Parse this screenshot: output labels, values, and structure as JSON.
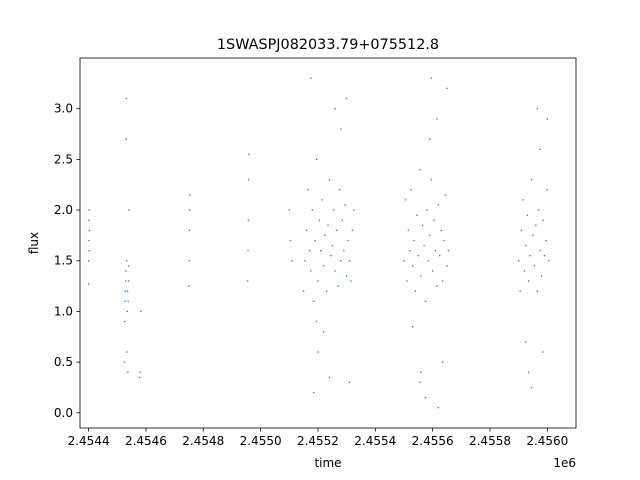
{
  "chart_data": {
    "type": "scatter",
    "title": "1SWASPJ082033.79+075512.8",
    "xlabel": "time",
    "ylabel": "flux",
    "x_offset_label": "1e6",
    "xlim": [
      2454370,
      2456100
    ],
    "ylim": [
      -0.15,
      3.5
    ],
    "x_ticks": [
      2454400,
      2454600,
      2454800,
      2455000,
      2455200,
      2455400,
      2455600,
      2455800,
      2456000
    ],
    "x_tick_labels": [
      "2.4544",
      "2.4546",
      "2.4548",
      "2.4550",
      "2.4552",
      "2.4554",
      "2.4556",
      "2.4558",
      "2.4560"
    ],
    "y_ticks": [
      0.0,
      0.5,
      1.0,
      1.5,
      2.0,
      2.5,
      3.0
    ],
    "y_tick_labels": [
      "0.0",
      "0.5",
      "1.0",
      "1.5",
      "2.0",
      "2.5",
      "3.0"
    ],
    "grid": false,
    "marker_color": "#1f77b4",
    "series": [
      {
        "x": [
          2454400,
          2454400,
          2454401,
          2454401,
          2454402,
          2454402,
          2454403,
          2454525,
          2454526,
          2454527,
          2454528,
          2454529,
          2454530,
          2454531,
          2454532,
          2454533,
          2454534,
          2454535,
          2454536,
          2454537,
          2454538,
          2454539,
          2454540,
          2454541,
          2454578,
          2454580,
          2454582,
          2454750,
          2454751,
          2454752,
          2454753,
          2454754,
          2454955,
          2454956,
          2454957,
          2454958,
          2454959,
          2455100,
          2455105,
          2455110,
          2455150,
          2455155,
          2455160,
          2455165,
          2455170,
          2455175,
          2455180,
          2455185,
          2455190,
          2455195,
          2455200,
          2455205,
          2455210,
          2455215,
          2455220,
          2455225,
          2455230,
          2455235,
          2455240,
          2455245,
          2455250,
          2455255,
          2455260,
          2455265,
          2455270,
          2455275,
          2455280,
          2455285,
          2455290,
          2455295,
          2455300,
          2455305,
          2455310,
          2455315,
          2455320,
          2455325,
          2455200,
          2455220,
          2455240,
          2455260,
          2455280,
          2455300,
          2455310,
          2455175,
          2455185,
          2455195,
          2455500,
          2455505,
          2455510,
          2455515,
          2455520,
          2455525,
          2455530,
          2455535,
          2455540,
          2455545,
          2455550,
          2455555,
          2455560,
          2455565,
          2455570,
          2455575,
          2455580,
          2455585,
          2455590,
          2455595,
          2455600,
          2455605,
          2455610,
          2455615,
          2455620,
          2455625,
          2455630,
          2455635,
          2455640,
          2455645,
          2455650,
          2455655,
          2455555,
          2455575,
          2455595,
          2455615,
          2455635,
          2455650,
          2455530,
          2455560,
          2455590,
          2455620,
          2455900,
          2455905,
          2455910,
          2455915,
          2455920,
          2455925,
          2455930,
          2455935,
          2455940,
          2455945,
          2455950,
          2455955,
          2455960,
          2455965,
          2455970,
          2455975,
          2455980,
          2455985,
          2455990,
          2455995,
          2456000,
          2456005,
          2455925,
          2455945,
          2455965,
          2455985,
          2456000,
          2455935,
          2455975
        ],
        "y": [
          1.27,
          1.5,
          1.7,
          1.9,
          2.0,
          1.6,
          1.8,
          0.5,
          0.9,
          1.1,
          1.2,
          1.3,
          1.4,
          2.7,
          3.1,
          1.5,
          0.6,
          1.0,
          1.2,
          0.4,
          1.1,
          1.3,
          1.45,
          2.0,
          0.35,
          0.4,
          1.0,
          1.25,
          1.5,
          1.8,
          2.0,
          2.15,
          1.3,
          1.6,
          1.9,
          2.3,
          2.55,
          2.0,
          1.7,
          1.5,
          1.2,
          1.5,
          1.8,
          2.2,
          1.6,
          1.4,
          2.0,
          1.1,
          1.7,
          2.5,
          1.3,
          1.9,
          1.6,
          2.1,
          1.45,
          1.75,
          1.2,
          1.85,
          2.3,
          1.55,
          1.65,
          2.0,
          1.4,
          1.8,
          1.25,
          2.2,
          1.5,
          1.9,
          1.6,
          2.05,
          1.35,
          1.7,
          1.5,
          1.3,
          1.8,
          2.0,
          0.6,
          0.8,
          0.35,
          3.0,
          2.8,
          3.1,
          0.3,
          3.3,
          0.2,
          0.9,
          1.5,
          2.1,
          1.3,
          1.8,
          1.6,
          2.2,
          1.45,
          1.7,
          1.2,
          1.95,
          1.55,
          2.4,
          1.35,
          1.85,
          1.65,
          1.1,
          2.0,
          1.5,
          1.75,
          2.3,
          1.4,
          1.9,
          1.6,
          1.25,
          2.05,
          1.55,
          1.8,
          1.3,
          1.7,
          2.15,
          1.45,
          1.6,
          0.3,
          0.15,
          3.3,
          2.9,
          0.5,
          3.2,
          0.85,
          0.4,
          2.7,
          0.05,
          1.5,
          1.2,
          1.8,
          2.1,
          1.4,
          1.65,
          1.95,
          1.3,
          1.55,
          2.3,
          1.75,
          1.45,
          1.85,
          1.2,
          2.0,
          1.6,
          1.35,
          1.9,
          1.55,
          1.7,
          2.2,
          1.5,
          0.7,
          0.25,
          3.0,
          0.6,
          2.9,
          0.4,
          2.6
        ]
      }
    ]
  }
}
